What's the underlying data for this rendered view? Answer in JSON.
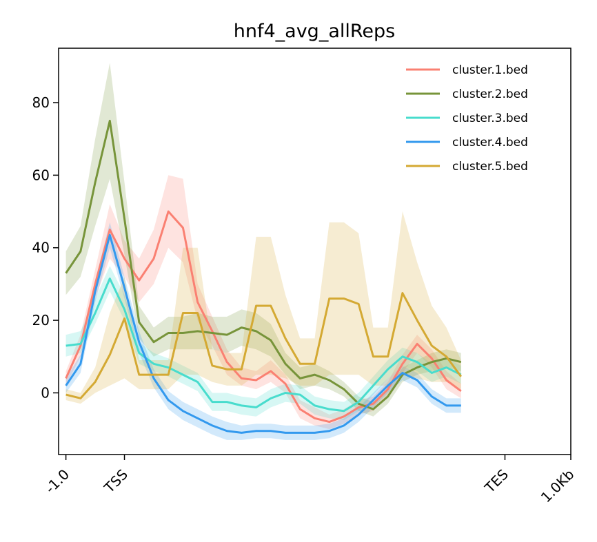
{
  "chart_data": {
    "type": "line",
    "title": "hnf4_avg_allReps",
    "xlabel": "",
    "ylabel": "",
    "xlim": [
      -0.5,
      34.5
    ],
    "ylim": [
      -17,
      95
    ],
    "yticks": [
      0,
      20,
      40,
      60,
      80
    ],
    "xticks": [
      {
        "pos": 0,
        "label": "-1.0"
      },
      {
        "pos": 4,
        "label": "TSS"
      },
      {
        "pos": 30,
        "label": "TES"
      },
      {
        "pos": 34.5,
        "label": "1.0Kb"
      }
    ],
    "legend_position": "top-right",
    "series": [
      {
        "name": "cluster.1.bed",
        "color": "#fa8072",
        "values": [
          4,
          13,
          30,
          45,
          37,
          31,
          37,
          50,
          45.5,
          25,
          17,
          8.5,
          4,
          3.5,
          6,
          2.5,
          -4.5,
          -7,
          -8,
          -6.5,
          -4,
          -3,
          1,
          8,
          13.5,
          9.5,
          3.5,
          0.5
        ],
        "band": [
          [
            2,
            6
          ],
          [
            10,
            16
          ],
          [
            26,
            34
          ],
          [
            37,
            52
          ],
          [
            32,
            42
          ],
          [
            25,
            37
          ],
          [
            30,
            45
          ],
          [
            40,
            60
          ],
          [
            36,
            59
          ],
          [
            20,
            30
          ],
          [
            13,
            21
          ],
          [
            5,
            12
          ],
          [
            2,
            7
          ],
          [
            1,
            6
          ],
          [
            3,
            9
          ],
          [
            0,
            5
          ],
          [
            -7,
            -2
          ],
          [
            -9,
            -4
          ],
          [
            -10,
            -6
          ],
          [
            -8.5,
            -4.5
          ],
          [
            -6,
            -2
          ],
          [
            -5,
            -1
          ],
          [
            -1,
            3
          ],
          [
            5.5,
            10.5
          ],
          [
            11,
            16
          ],
          [
            7,
            12
          ],
          [
            1,
            6
          ],
          [
            -1.5,
            2.5
          ]
        ]
      },
      {
        "name": "cluster.2.bed",
        "color": "#77943a",
        "values": [
          33,
          39,
          58,
          75,
          48,
          19.5,
          14,
          16.5,
          16.5,
          17,
          16.5,
          16,
          18,
          17,
          14.5,
          8,
          4,
          5,
          3.5,
          1,
          -3,
          -4.5,
          -1,
          5,
          7,
          8.5,
          9.5,
          8.5
        ],
        "band": [
          [
            27,
            39
          ],
          [
            32,
            46
          ],
          [
            46,
            70
          ],
          [
            59,
            91
          ],
          [
            38,
            58
          ],
          [
            15,
            24
          ],
          [
            10,
            18
          ],
          [
            12,
            21
          ],
          [
            12,
            21
          ],
          [
            12,
            22
          ],
          [
            12,
            21
          ],
          [
            11,
            21
          ],
          [
            13,
            23
          ],
          [
            12,
            22
          ],
          [
            10,
            19
          ],
          [
            5,
            11
          ],
          [
            1,
            7
          ],
          [
            2,
            8
          ],
          [
            1,
            6
          ],
          [
            -1,
            3
          ],
          [
            -5,
            -1
          ],
          [
            -6.5,
            -2.5
          ],
          [
            -3,
            1
          ],
          [
            3,
            7
          ],
          [
            5,
            9
          ],
          [
            6,
            11
          ],
          [
            7,
            12
          ],
          [
            6,
            11
          ]
        ]
      },
      {
        "name": "cluster.3.bed",
        "color": "#48dccd",
        "values": [
          13,
          13.5,
          22,
          31.5,
          23,
          11,
          8,
          7,
          5,
          3,
          -2.5,
          -2.5,
          -3.5,
          -4,
          -1.5,
          0,
          -0.5,
          -3.5,
          -4.5,
          -5,
          -2.5,
          2,
          6.5,
          10,
          8.5,
          5.5,
          7,
          5
        ],
        "band": [
          [
            10,
            16
          ],
          [
            11,
            17
          ],
          [
            19,
            26
          ],
          [
            28,
            35
          ],
          [
            20,
            27
          ],
          [
            8,
            14
          ],
          [
            6,
            11
          ],
          [
            4.5,
            9.5
          ],
          [
            2.5,
            7.5
          ],
          [
            0.5,
            5.5
          ],
          [
            -5,
            0
          ],
          [
            -5,
            0
          ],
          [
            -6,
            -1
          ],
          [
            -6.5,
            -1.5
          ],
          [
            -4,
            1
          ],
          [
            -2.5,
            2.5
          ],
          [
            -3,
            2
          ],
          [
            -6,
            -1
          ],
          [
            -7,
            -2
          ],
          [
            -7.5,
            -2.5
          ],
          [
            -5,
            0
          ],
          [
            -0.5,
            4.5
          ],
          [
            4,
            9
          ],
          [
            7.5,
            12.5
          ],
          [
            6,
            11
          ],
          [
            3,
            8
          ],
          [
            4.5,
            9.5
          ],
          [
            2.5,
            7.5
          ]
        ]
      },
      {
        "name": "cluster.4.bed",
        "color": "#3399ee",
        "values": [
          2,
          8,
          28,
          43.5,
          29,
          14,
          4,
          -2,
          -5,
          -7,
          -9,
          -10.5,
          -11,
          -10.5,
          -10.5,
          -11,
          -11,
          -11,
          -10.5,
          -9,
          -6,
          -2,
          2,
          5.5,
          3.5,
          -1,
          -3.5,
          -3.5
        ],
        "band": [
          [
            0,
            4
          ],
          [
            5.5,
            10.5
          ],
          [
            25,
            31
          ],
          [
            40,
            47
          ],
          [
            26,
            32
          ],
          [
            11,
            17
          ],
          [
            1.5,
            6.5
          ],
          [
            -4.5,
            0.5
          ],
          [
            -7.5,
            -2.5
          ],
          [
            -9.5,
            -4.5
          ],
          [
            -11.5,
            -6.5
          ],
          [
            -13,
            -8
          ],
          [
            -13,
            -9
          ],
          [
            -12.5,
            -8.5
          ],
          [
            -12.5,
            -8.5
          ],
          [
            -13,
            -9
          ],
          [
            -13,
            -9
          ],
          [
            -13,
            -9
          ],
          [
            -12.5,
            -8.5
          ],
          [
            -11,
            -7
          ],
          [
            -8,
            -4
          ],
          [
            -4,
            0
          ],
          [
            0,
            4
          ],
          [
            3.5,
            7.5
          ],
          [
            1.5,
            5.5
          ],
          [
            -3,
            1
          ],
          [
            -5.5,
            -1.5
          ],
          [
            -5.5,
            -1.5
          ]
        ]
      },
      {
        "name": "cluster.5.bed",
        "color": "#d4a933",
        "values": [
          -0.5,
          -1.5,
          3,
          10.5,
          20.5,
          5,
          5,
          5,
          22,
          22,
          7.5,
          6.5,
          6.5,
          24,
          24,
          15,
          8,
          8,
          26,
          26,
          24.5,
          10,
          10,
          27.5,
          20,
          13,
          10,
          4.5
        ],
        "band": [
          [
            -2,
            1
          ],
          [
            -3,
            0
          ],
          [
            0,
            7
          ],
          [
            2,
            22
          ],
          [
            4,
            32
          ],
          [
            1,
            9
          ],
          [
            1,
            9
          ],
          [
            1,
            9
          ],
          [
            5,
            40
          ],
          [
            5,
            40
          ],
          [
            3,
            12
          ],
          [
            2,
            11
          ],
          [
            2,
            11
          ],
          [
            5,
            43
          ],
          [
            5,
            43
          ],
          [
            4,
            27
          ],
          [
            2,
            15
          ],
          [
            2,
            15
          ],
          [
            5,
            47
          ],
          [
            5,
            47
          ],
          [
            5,
            44
          ],
          [
            2,
            18
          ],
          [
            2,
            18
          ],
          [
            5,
            50
          ],
          [
            4,
            36
          ],
          [
            3,
            24
          ],
          [
            3,
            18
          ],
          [
            1,
            9
          ]
        ]
      }
    ]
  }
}
